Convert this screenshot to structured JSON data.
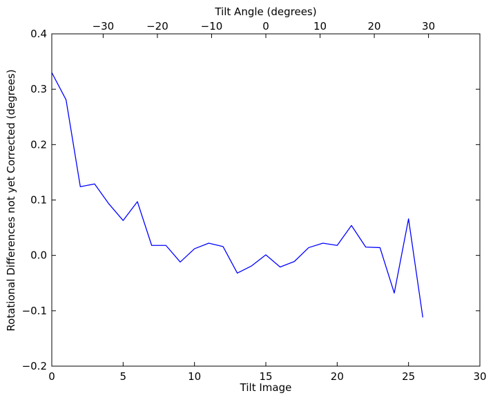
{
  "chart_data": {
    "type": "line",
    "xlabel": "Tilt Image",
    "ylabel": "Rotational Differences not yet Corrected (degrees)",
    "top_xlabel": "Tilt Angle (degrees)",
    "xlim": [
      0,
      30
    ],
    "ylim": [
      -0.2,
      0.4
    ],
    "grid": false,
    "x_ticks": [
      0,
      5,
      10,
      15,
      20,
      25,
      30
    ],
    "x_tick_labels": [
      "0",
      "5",
      "10",
      "15",
      "20",
      "25",
      "30"
    ],
    "y_ticks": [
      0.4,
      0.3,
      0.2,
      0.1,
      0.0,
      -0.1,
      -0.2
    ],
    "y_tick_labels": [
      "0.4",
      "0.3",
      "0.2",
      "0.1",
      "0.0",
      "−0.1",
      "−0.2"
    ],
    "top_ticks": [
      {
        "angle": -30,
        "at_tilt_image": 3.6,
        "label": "−30"
      },
      {
        "angle": -20,
        "at_tilt_image": 7.4,
        "label": "−20"
      },
      {
        "angle": -10,
        "at_tilt_image": 11.2,
        "label": "−10"
      },
      {
        "angle": 0,
        "at_tilt_image": 15.0,
        "label": "0"
      },
      {
        "angle": 10,
        "at_tilt_image": 18.8,
        "label": "10"
      },
      {
        "angle": 20,
        "at_tilt_image": 22.6,
        "label": "20"
      },
      {
        "angle": 30,
        "at_tilt_image": 26.4,
        "label": "30"
      }
    ],
    "series": [
      {
        "color": "#0000ff",
        "x": [
          0,
          1,
          2,
          3,
          4,
          5,
          6,
          7,
          8,
          9,
          10,
          11,
          12,
          13,
          14,
          15,
          16,
          17,
          18,
          19,
          20,
          21,
          22,
          23,
          24,
          25,
          26
        ],
        "y": [
          0.33,
          0.281,
          0.124,
          0.129,
          0.093,
          0.063,
          0.097,
          0.018,
          0.018,
          -0.012,
          0.012,
          0.022,
          0.016,
          -0.032,
          -0.019,
          0.001,
          -0.021,
          -0.011,
          0.014,
          0.022,
          0.018,
          0.054,
          0.015,
          0.014,
          -0.068,
          0.066,
          -0.112
        ]
      }
    ]
  }
}
